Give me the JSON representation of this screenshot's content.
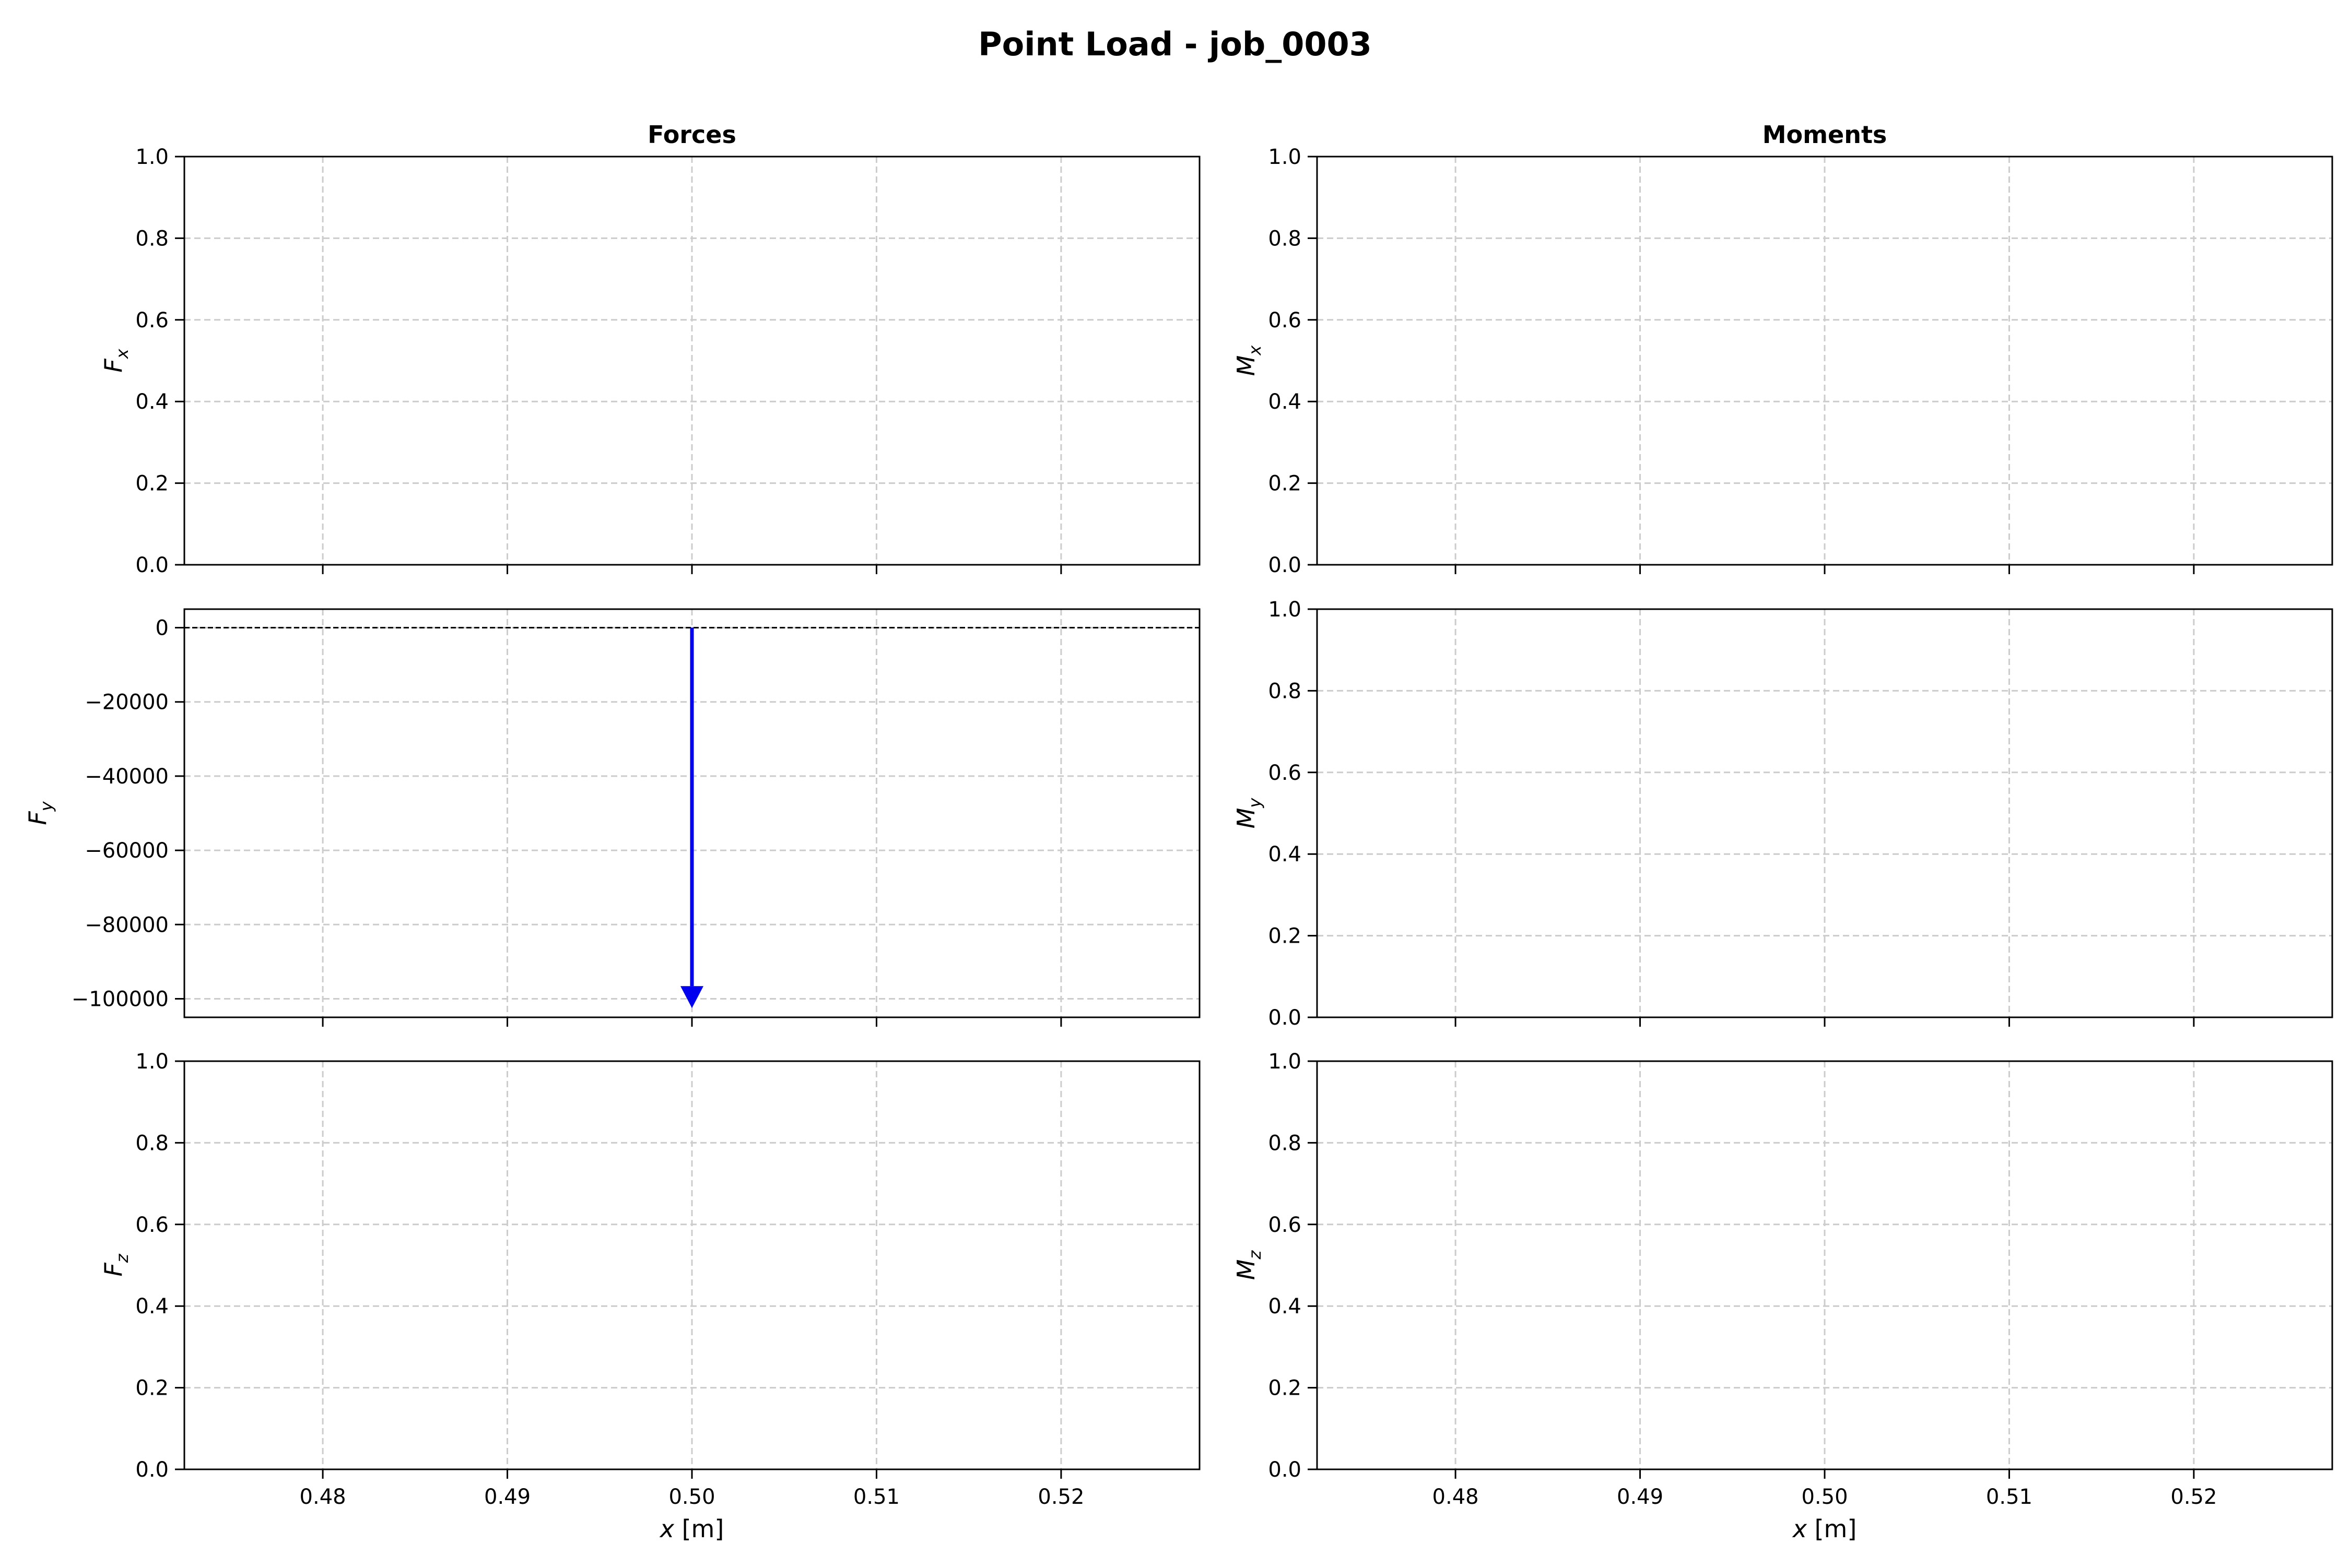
{
  "figure_title": "Point Load - job_0003",
  "colors": {
    "load_arrow": "#0000ee",
    "grid": "#cccccc",
    "axis": "#000000",
    "zero_line": "#000000"
  },
  "chart_data": [
    {
      "id": "fx",
      "type": "line",
      "column_title": "Forces",
      "ylabel": "F",
      "ylabel_sub": "x",
      "xlabel": "",
      "xlim": [
        0.4725,
        0.5275
      ],
      "ylim": [
        0,
        1
      ],
      "xticks": [
        0.48,
        0.49,
        0.5,
        0.51,
        0.52
      ],
      "xtick_labels": [],
      "yticks": [
        0,
        0.2,
        0.4,
        0.6,
        0.8,
        1.0
      ],
      "ytick_labels": [
        "0.0",
        "0.2",
        "0.4",
        "0.6",
        "0.8",
        "1.0"
      ],
      "grid": true,
      "series": []
    },
    {
      "id": "mx",
      "type": "line",
      "column_title": "Moments",
      "ylabel": "M",
      "ylabel_sub": "x",
      "xlabel": "",
      "xlim": [
        0.4725,
        0.5275
      ],
      "ylim": [
        0,
        1
      ],
      "xticks": [
        0.48,
        0.49,
        0.5,
        0.51,
        0.52
      ],
      "xtick_labels": [],
      "yticks": [
        0,
        0.2,
        0.4,
        0.6,
        0.8,
        1.0
      ],
      "ytick_labels": [
        "0.0",
        "0.2",
        "0.4",
        "0.6",
        "0.8",
        "1.0"
      ],
      "grid": true,
      "series": []
    },
    {
      "id": "fy",
      "type": "line",
      "column_title": "",
      "ylabel": "F",
      "ylabel_sub": "y",
      "xlabel": "",
      "xlim": [
        0.4725,
        0.5275
      ],
      "ylim": [
        -105000,
        5000
      ],
      "xticks": [
        0.48,
        0.49,
        0.5,
        0.51,
        0.52
      ],
      "xtick_labels": [],
      "yticks": [
        0,
        -20000,
        -40000,
        -60000,
        -80000,
        -100000
      ],
      "ytick_labels": [
        "0",
        "−20000",
        "−40000",
        "−60000",
        "−80000",
        "−100000"
      ],
      "grid": true,
      "zero_line": true,
      "series": [],
      "arrows": [
        {
          "x": 0.5,
          "from": 0,
          "to": -102500
        }
      ]
    },
    {
      "id": "my",
      "type": "line",
      "column_title": "",
      "ylabel": "M",
      "ylabel_sub": "y",
      "xlabel": "",
      "xlim": [
        0.4725,
        0.5275
      ],
      "ylim": [
        0,
        1
      ],
      "xticks": [
        0.48,
        0.49,
        0.5,
        0.51,
        0.52
      ],
      "xtick_labels": [],
      "yticks": [
        0,
        0.2,
        0.4,
        0.6,
        0.8,
        1.0
      ],
      "ytick_labels": [
        "0.0",
        "0.2",
        "0.4",
        "0.6",
        "0.8",
        "1.0"
      ],
      "grid": true,
      "series": []
    },
    {
      "id": "fz",
      "type": "line",
      "column_title": "",
      "ylabel": "F",
      "ylabel_sub": "z",
      "xlabel": "x [m]",
      "xlim": [
        0.4725,
        0.5275
      ],
      "ylim": [
        0,
        1
      ],
      "xticks": [
        0.48,
        0.49,
        0.5,
        0.51,
        0.52
      ],
      "xtick_labels": [
        "0.48",
        "0.49",
        "0.50",
        "0.51",
        "0.52"
      ],
      "yticks": [
        0,
        0.2,
        0.4,
        0.6,
        0.8,
        1.0
      ],
      "ytick_labels": [
        "0.0",
        "0.2",
        "0.4",
        "0.6",
        "0.8",
        "1.0"
      ],
      "grid": true,
      "series": []
    },
    {
      "id": "mz",
      "type": "line",
      "column_title": "",
      "ylabel": "M",
      "ylabel_sub": "z",
      "xlabel": "x [m]",
      "xlim": [
        0.4725,
        0.5275
      ],
      "ylim": [
        0,
        1
      ],
      "xticks": [
        0.48,
        0.49,
        0.5,
        0.51,
        0.52
      ],
      "xtick_labels": [
        "0.48",
        "0.49",
        "0.50",
        "0.51",
        "0.52"
      ],
      "yticks": [
        0,
        0.2,
        0.4,
        0.6,
        0.8,
        1.0
      ],
      "ytick_labels": [
        "0.0",
        "0.2",
        "0.4",
        "0.6",
        "0.8",
        "1.0"
      ],
      "grid": true,
      "series": []
    }
  ]
}
